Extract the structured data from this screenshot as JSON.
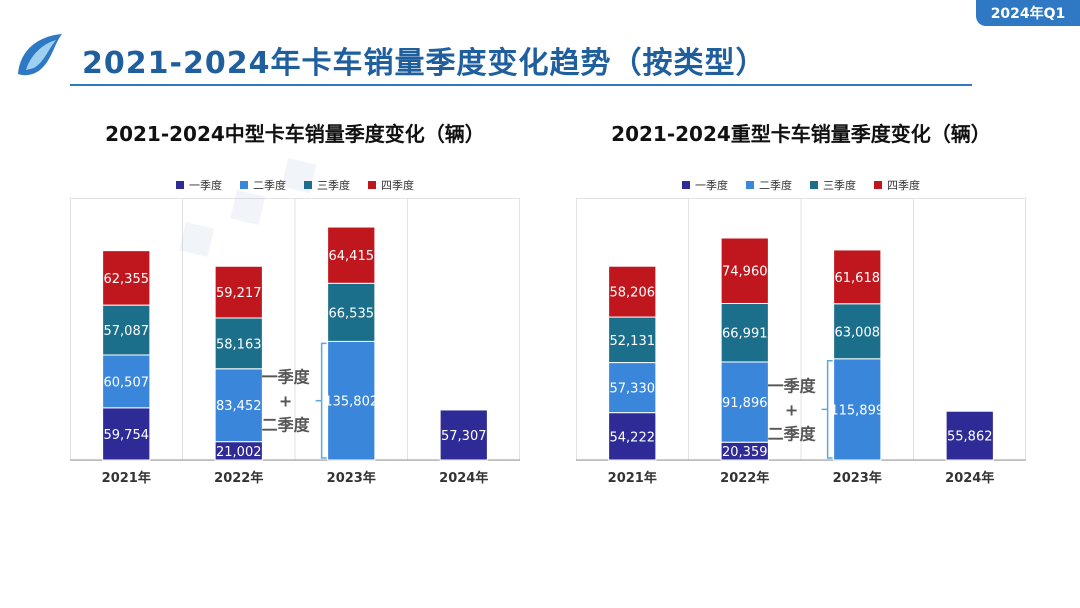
{
  "header": {
    "badge": "2024年Q1",
    "title": "2021-2024年卡车销量季度变化趋势（按类型）"
  },
  "colors": {
    "q1": "#2e2a96",
    "q2": "#3a86db",
    "q3": "#1b6f8a",
    "q4": "#c0161d",
    "accent": "#2f78c4",
    "title": "#1f5f9e",
    "bracket": "#5aa9dd"
  },
  "legend": [
    "一季度",
    "二季度",
    "三季度",
    "四季度"
  ],
  "chart_data": [
    {
      "type": "bar",
      "stacked": true,
      "title": "2021-2024中型卡车销量季度变化（辆）",
      "categories": [
        "2021年",
        "2022年",
        "2023年",
        "2024年"
      ],
      "series": [
        {
          "name": "一季度",
          "values": [
            59754,
            21002,
            null,
            57307
          ]
        },
        {
          "name": "二季度",
          "values": [
            60507,
            83452,
            135802,
            null
          ]
        },
        {
          "name": "三季度",
          "values": [
            57087,
            58163,
            66535,
            null
          ]
        },
        {
          "name": "四季度",
          "values": [
            62355,
            59217,
            64415,
            null
          ]
        }
      ],
      "annotation": {
        "category": "2023年",
        "lines": [
          "一季度",
          "+",
          "二季度"
        ]
      },
      "ylim": [
        0,
        300000
      ]
    },
    {
      "type": "bar",
      "stacked": true,
      "title": "2021-2024重型卡车销量季度变化（辆）",
      "categories": [
        "2021年",
        "2022年",
        "2023年",
        "2024年"
      ],
      "series": [
        {
          "name": "一季度",
          "values": [
            54222,
            20359,
            null,
            55862
          ]
        },
        {
          "name": "二季度",
          "values": [
            57330,
            91896,
            115899,
            null
          ]
        },
        {
          "name": "三季度",
          "values": [
            52131,
            66991,
            63008,
            null
          ]
        },
        {
          "name": "四季度",
          "values": [
            58206,
            74960,
            61618,
            null
          ]
        }
      ],
      "annotation": {
        "category": "2023年",
        "lines": [
          "一季度",
          "+",
          "二季度"
        ]
      },
      "ylim": [
        0,
        300000
      ]
    }
  ]
}
